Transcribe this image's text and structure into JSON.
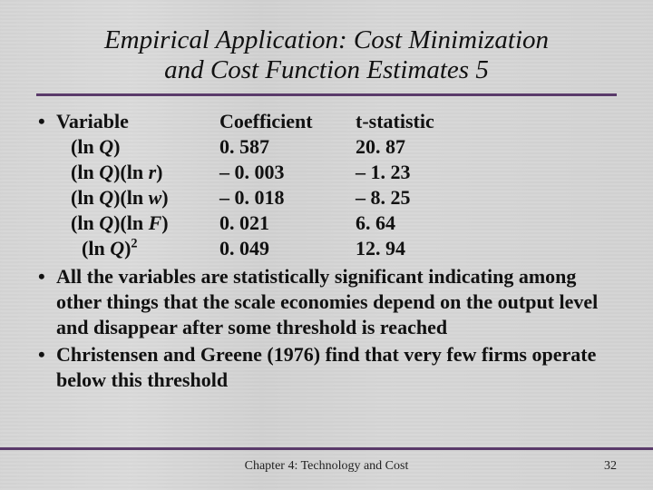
{
  "title": {
    "line1": "Empirical Application:  Cost Minimization",
    "line2": "and Cost Function Estimates 5"
  },
  "table": {
    "headers": {
      "variable": "Variable",
      "coefficient": "Coefficient",
      "tstatistic": "t-statistic"
    },
    "rows": [
      {
        "var_prefix": "(ln ",
        "var_sym": "Q",
        "var_suffix": ")",
        "coef": "0. 587",
        "tstat": "20. 87"
      },
      {
        "var_prefix": "(ln ",
        "var_sym": "Q",
        "var_mid": ")(ln ",
        "var_sym2": "r",
        "var_suffix": ")",
        "coef": "– 0. 003",
        "tstat": "– 1. 23"
      },
      {
        "var_prefix": "(ln ",
        "var_sym": "Q",
        "var_mid": ")(ln ",
        "var_sym2": "w",
        "var_suffix": ")",
        "coef": "– 0. 018",
        "tstat": "– 8. 25"
      },
      {
        "var_prefix": "(ln ",
        "var_sym": "Q",
        "var_mid": ")(ln ",
        "var_sym2": "F",
        "var_suffix": ")",
        "coef": "0. 021",
        "tstat": "6. 64"
      },
      {
        "extra_indent": true,
        "var_prefix": "(ln ",
        "var_sym": "Q",
        "var_suffix": ")",
        "super": "2",
        "coef": "0. 049",
        "tstat": "12. 94"
      }
    ]
  },
  "bullets": [
    "All the variables are statistically significant indicating among other things that the scale economies depend on the output level and disappear after some threshold is reached",
    "Christensen and Greene (1976) find that very few firms operate below this threshold"
  ],
  "footer": {
    "center": "Chapter 4: Technology and Cost",
    "page": "32"
  },
  "colors": {
    "rule": "#5a3a6a",
    "text": "#111111",
    "background": "#d8d8d8"
  }
}
